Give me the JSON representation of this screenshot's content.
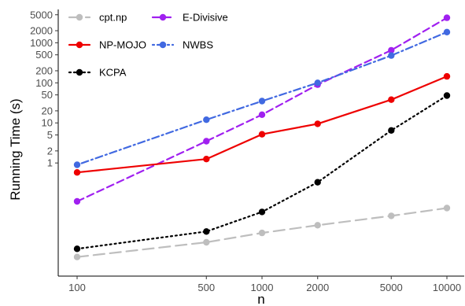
{
  "chart_data": {
    "type": "line",
    "xlabel": "n",
    "ylabel": "Running Time (s)",
    "x_scale": "log",
    "y_scale": "log",
    "x": [
      100,
      500,
      1000,
      2000,
      5000,
      10000
    ],
    "xticks": [
      "100",
      "500",
      "1000",
      "2000",
      "5000",
      "10000"
    ],
    "yticks": [
      "1",
      "2",
      "5",
      "10",
      "20",
      "50",
      "100",
      "200",
      "500",
      "1000",
      "2000",
      "5000"
    ],
    "xlim": [
      100,
      10000
    ],
    "ylim": [
      0.0018,
      6200
    ],
    "grid": false,
    "legend_position": "top-left",
    "series": [
      {
        "name": "cpt.np",
        "color": "#bebebe",
        "dash": "long-dash",
        "values": [
          0.0045,
          0.0105,
          0.018,
          0.028,
          0.048,
          0.075
        ]
      },
      {
        "name": "E-Divisive",
        "color": "#a020f0",
        "dash": "dashed",
        "values": [
          0.11,
          3.5,
          16,
          90,
          650,
          4200
        ]
      },
      {
        "name": "NP-MOJO",
        "color": "#ee0000",
        "dash": "solid",
        "values": [
          0.58,
          1.25,
          5.2,
          9.5,
          38,
          145
        ]
      },
      {
        "name": "NWBS",
        "color": "#4169e1",
        "dash": "dot-dash",
        "values": [
          0.9,
          12,
          35,
          100,
          480,
          1850
        ]
      },
      {
        "name": "KCPA",
        "color": "#000000",
        "dash": "dotted",
        "values": [
          0.0072,
          0.0195,
          0.06,
          0.33,
          6.5,
          48
        ]
      }
    ]
  }
}
